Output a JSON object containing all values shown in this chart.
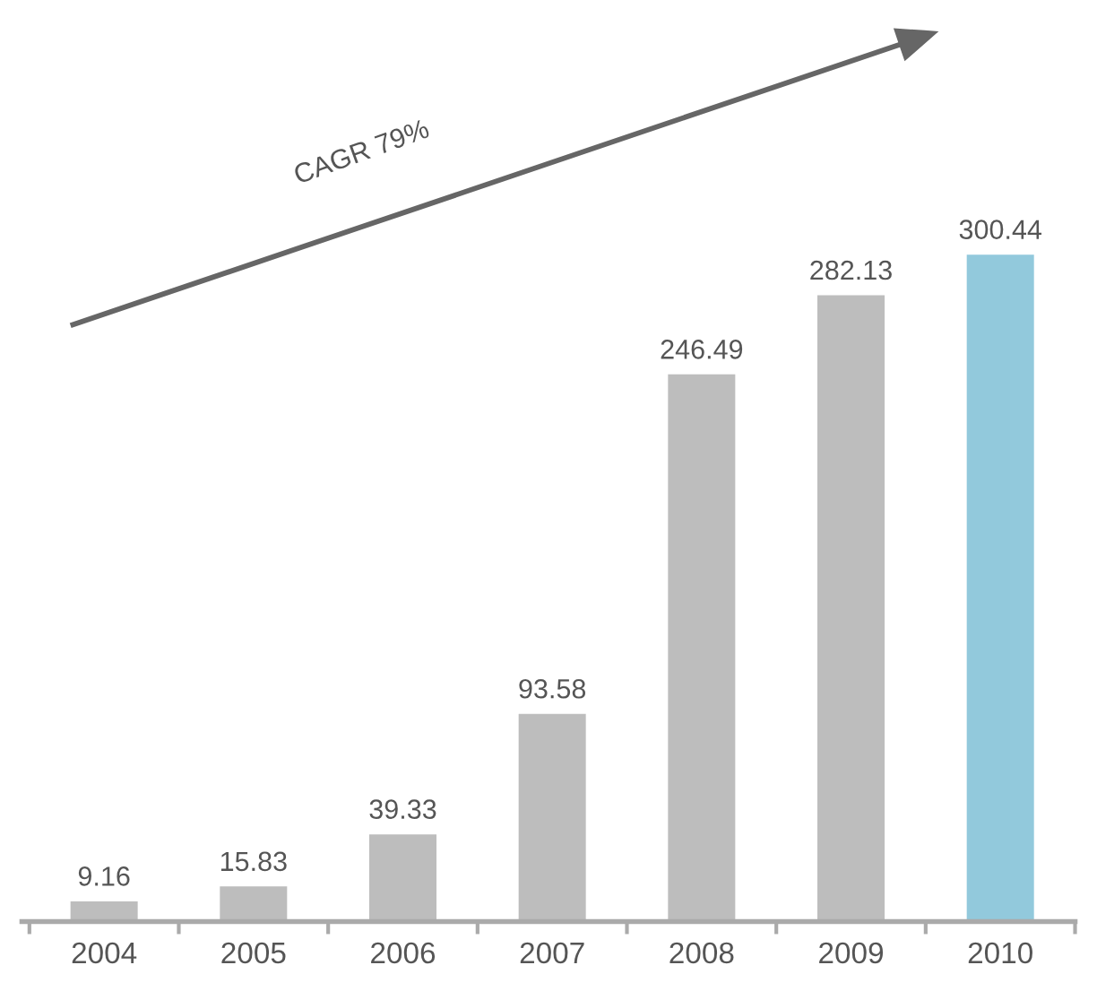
{
  "chart_data": {
    "type": "bar",
    "categories": [
      "2004",
      "2005",
      "2006",
      "2007",
      "2008",
      "2009",
      "2010"
    ],
    "values": [
      9.16,
      15.83,
      39.33,
      93.58,
      246.49,
      282.13,
      300.44
    ],
    "colors": [
      "#bdbdbd",
      "#bdbdbd",
      "#bdbdbd",
      "#bdbdbd",
      "#bdbdbd",
      "#bdbdbd",
      "#92c9dc"
    ],
    "data_labels": true,
    "annotations": [
      "CAGR 79%"
    ],
    "grid": false,
    "legend": false
  }
}
